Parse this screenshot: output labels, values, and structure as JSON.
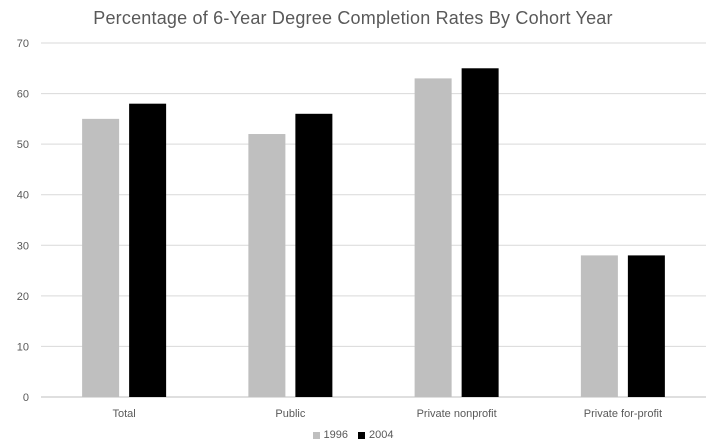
{
  "chart_data": {
    "type": "bar",
    "title": "Percentage of 6-Year Degree Completion Rates By Cohort Year",
    "xlabel": "",
    "ylabel": "",
    "categories": [
      "Total",
      "Public",
      "Private nonprofit",
      "Private for-profit"
    ],
    "series": [
      {
        "name": "1996",
        "color": "#bfbfbf",
        "values": [
          55,
          52,
          63,
          28
        ]
      },
      {
        "name": "2004",
        "color": "#000000",
        "values": [
          58,
          56,
          65,
          28
        ]
      }
    ],
    "ylim": [
      0,
      70
    ],
    "yticks": [
      0,
      10,
      20,
      30,
      40,
      50,
      60,
      70
    ],
    "grid": true,
    "legend_position": "bottom"
  }
}
